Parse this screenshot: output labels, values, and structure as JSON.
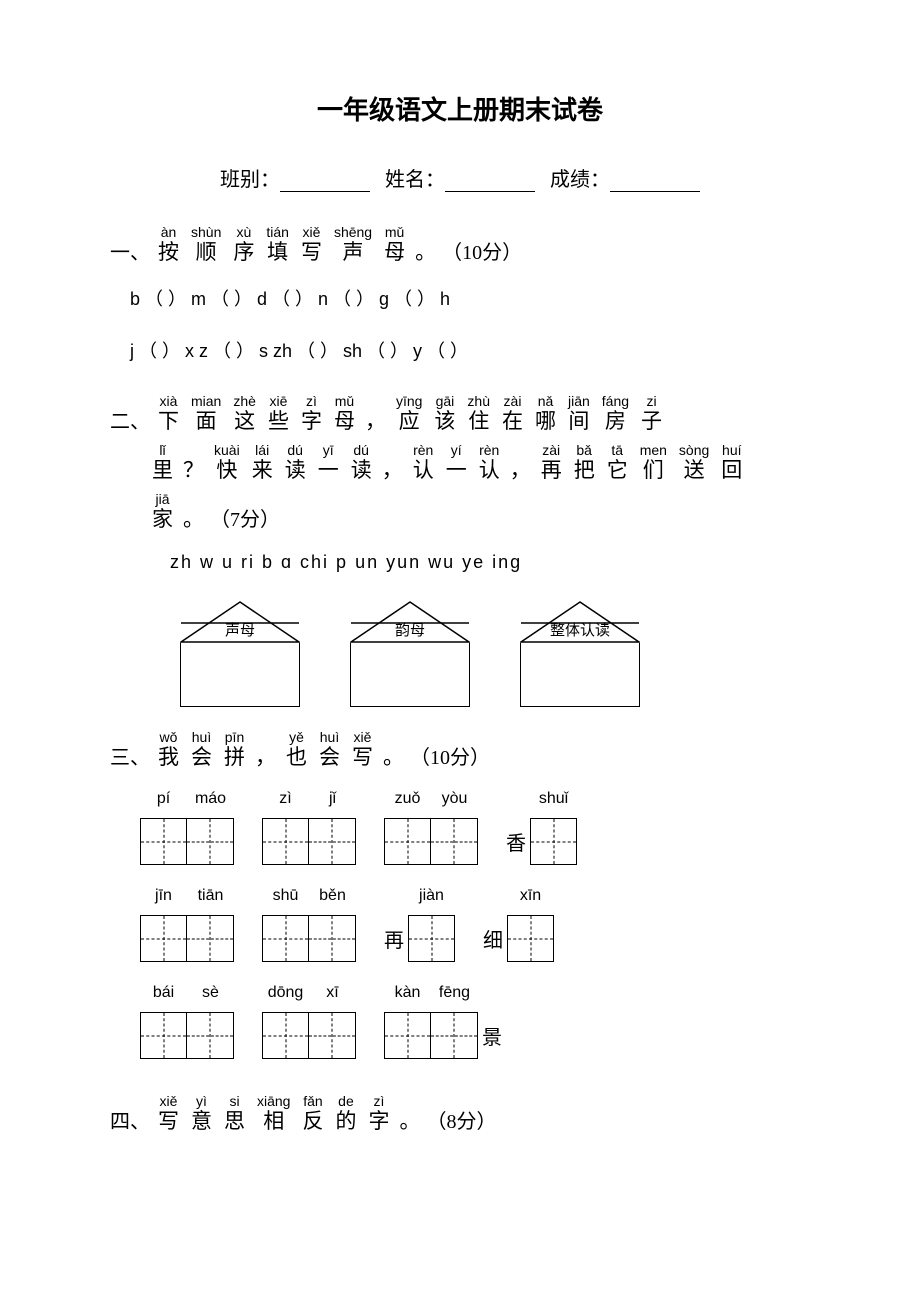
{
  "title": "一年级语文上册期末试卷",
  "info": {
    "class_label": "班别：",
    "name_label": "姓名：",
    "score_label": "成绩："
  },
  "sections": {
    "s1": {
      "label": "一、",
      "chars": [
        {
          "p": "àn",
          "h": "按"
        },
        {
          "p": "shùn",
          "h": "顺"
        },
        {
          "p": "xù",
          "h": "序"
        },
        {
          "p": "tián",
          "h": "填"
        },
        {
          "p": "xiě",
          "h": "写"
        },
        {
          "p": "shēng",
          "h": "声"
        },
        {
          "p": "mǔ",
          "h": "母"
        }
      ],
      "points": "（10分）",
      "row1": "b （ ）  m  （ ）  d  （ ）   n  （ ）  g  （ ）  h",
      "row2": "j （ ）  x   z  （ ）  s  zh  （ ）  sh （ ）  y  （ ）"
    },
    "s2": {
      "label": "二、",
      "line1": [
        {
          "p": "xià",
          "h": "下"
        },
        {
          "p": "mian",
          "h": "面"
        },
        {
          "p": "zhè",
          "h": "这"
        },
        {
          "p": "xiē",
          "h": "些"
        },
        {
          "p": "zì",
          "h": "字"
        },
        {
          "p": "mǔ",
          "h": "母"
        }
      ],
      "comma1": "，",
      "line1b": [
        {
          "p": "yīng",
          "h": "应"
        },
        {
          "p": "gāi",
          "h": "该"
        },
        {
          "p": "zhù",
          "h": "住"
        },
        {
          "p": "zài",
          "h": "在"
        },
        {
          "p": "nǎ",
          "h": "哪"
        },
        {
          "p": "jiān",
          "h": "间"
        },
        {
          "p": "fáng",
          "h": "房"
        },
        {
          "p": "zi",
          "h": "子"
        }
      ],
      "line2": [
        {
          "p": "lǐ",
          "h": "里"
        }
      ],
      "q": "？",
      "line2b": [
        {
          "p": "kuài",
          "h": "快"
        },
        {
          "p": "lái",
          "h": "来"
        },
        {
          "p": "dú",
          "h": "读"
        },
        {
          "p": "yī",
          "h": "一"
        },
        {
          "p": "dú",
          "h": "读"
        }
      ],
      "comma2": "，",
      "line2c": [
        {
          "p": "rèn",
          "h": "认"
        },
        {
          "p": "yí",
          "h": "一"
        },
        {
          "p": "rèn",
          "h": "认"
        }
      ],
      "comma3": "，",
      "line2d": [
        {
          "p": "zài",
          "h": "再"
        },
        {
          "p": "bǎ",
          "h": "把"
        },
        {
          "p": "tā",
          "h": "它"
        },
        {
          "p": "men",
          "h": "们"
        },
        {
          "p": "sòng",
          "h": "送"
        },
        {
          "p": "huí",
          "h": "回"
        }
      ],
      "line3": [
        {
          "p": "jiā",
          "h": "家"
        }
      ],
      "points": "（7分）",
      "letters": "zh  w  u  ri  b  ɑ  chi  p  un  yun  wu  ye  ing",
      "houses": [
        "声母",
        "韵母",
        "整体认读"
      ]
    },
    "s3": {
      "label": "三、",
      "chars": [
        {
          "p": "wǒ",
          "h": "我"
        },
        {
          "p": "huì",
          "h": "会"
        },
        {
          "p": "pīn",
          "h": "拼"
        }
      ],
      "comma": "，",
      "chars2": [
        {
          "p": "yě",
          "h": "也"
        },
        {
          "p": "huì",
          "h": "会"
        },
        {
          "p": "xiě",
          "h": "写"
        }
      ],
      "points": "（10分）",
      "rows": [
        [
          {
            "pinyin": [
              "pí",
              "máo"
            ],
            "prefix": "",
            "boxes": 2
          },
          {
            "pinyin": [
              "zì",
              "jǐ"
            ],
            "prefix": "",
            "boxes": 2
          },
          {
            "pinyin": [
              "zuǒ",
              "yòu"
            ],
            "prefix": "",
            "boxes": 2
          },
          {
            "pinyin": [
              "shuǐ"
            ],
            "prefix": "香",
            "boxes": 1
          }
        ],
        [
          {
            "pinyin": [
              "jīn",
              "tiān"
            ],
            "prefix": "",
            "boxes": 2
          },
          {
            "pinyin": [
              "shū",
              "běn"
            ],
            "prefix": "",
            "boxes": 2
          },
          {
            "pinyin": [
              "jiàn"
            ],
            "prefix": "再",
            "boxes": 1
          },
          {
            "pinyin": [
              "xīn"
            ],
            "prefix": "细",
            "boxes": 1
          }
        ],
        [
          {
            "pinyin": [
              "bái",
              "sè"
            ],
            "prefix": "",
            "boxes": 2
          },
          {
            "pinyin": [
              "dōng",
              "xī"
            ],
            "prefix": "",
            "boxes": 2
          },
          {
            "pinyin": [
              "kàn",
              "fēng"
            ],
            "prefix": "",
            "boxes": 2,
            "suffix": "景"
          }
        ]
      ]
    },
    "s4": {
      "label": "四、",
      "chars": [
        {
          "p": "xiě",
          "h": "写"
        },
        {
          "p": "yì",
          "h": "意"
        },
        {
          "p": "si",
          "h": "思"
        },
        {
          "p": "xiāng",
          "h": "相"
        },
        {
          "p": "fǎn",
          "h": "反"
        },
        {
          "p": "de",
          "h": "的"
        },
        {
          "p": "zì",
          "h": "字"
        }
      ],
      "points": "（8分）"
    }
  },
  "colors": {
    "text": "#000000",
    "background": "#ffffff"
  }
}
